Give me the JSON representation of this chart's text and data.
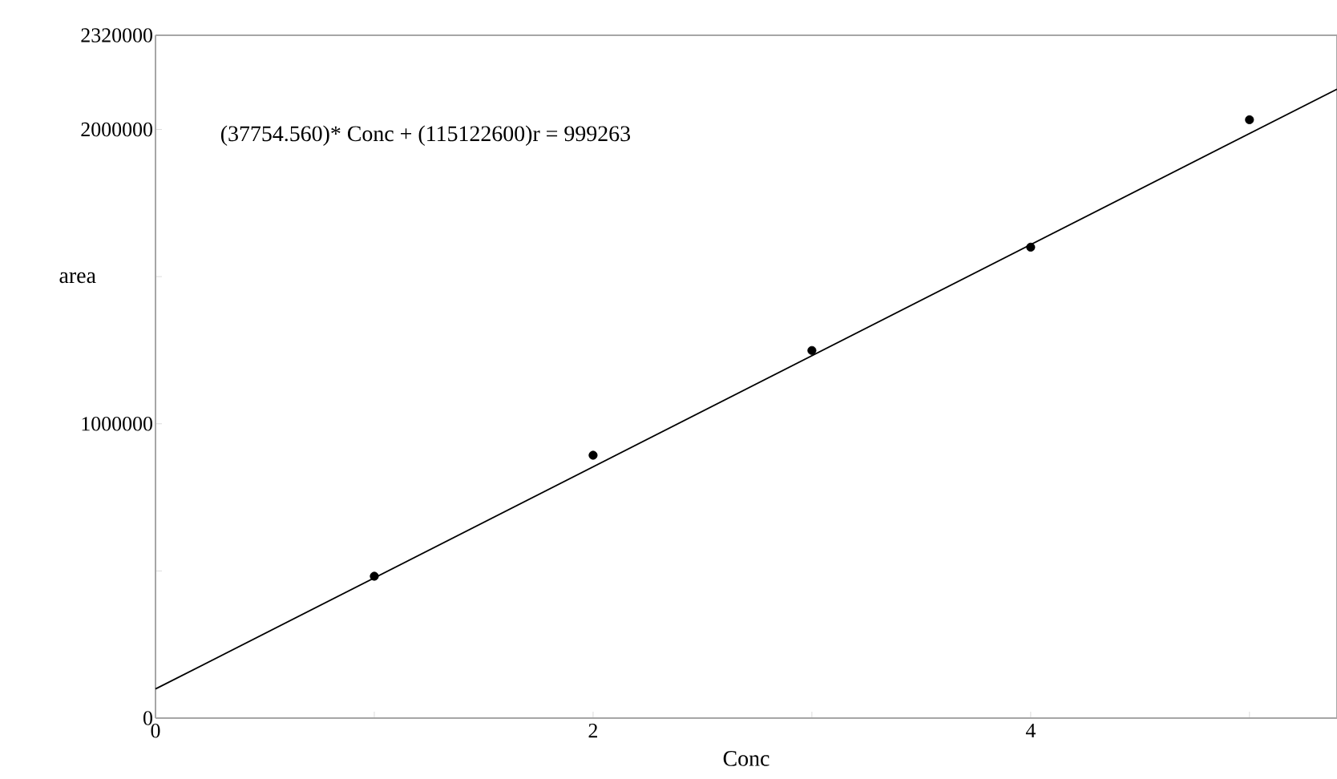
{
  "chart_data": {
    "type": "scatter",
    "xlabel": "Conc",
    "ylabel": "area",
    "annotations": [
      "(37754.560)* Conc + (115122600)r = 999263"
    ],
    "x": [
      1,
      2,
      3,
      4,
      5
    ],
    "series": [
      {
        "color": "#000000",
        "marker": "circle",
        "values": [
          482000,
          893000,
          1249000,
          1600000,
          2033000
        ]
      },
      {
        "type": "line",
        "color": "#000000",
        "marker": "none",
        "line_style": "solid",
        "x": [
          0,
          5.4
        ],
        "values": [
          99000,
          2137000
        ]
      }
    ],
    "xlim": [
      0,
      5.4
    ],
    "ylim": [
      0,
      2320000
    ],
    "xticks": [
      0,
      {
        "value": 1,
        "label": null
      },
      2,
      {
        "value": 3,
        "label": null
      },
      4,
      {
        "value": 5,
        "label": null
      }
    ],
    "yticks": [
      0,
      {
        "value": 500000,
        "label": null
      },
      1000000,
      {
        "value": 1500000,
        "label": null
      },
      2000000,
      2320000
    ],
    "grid": false
  }
}
